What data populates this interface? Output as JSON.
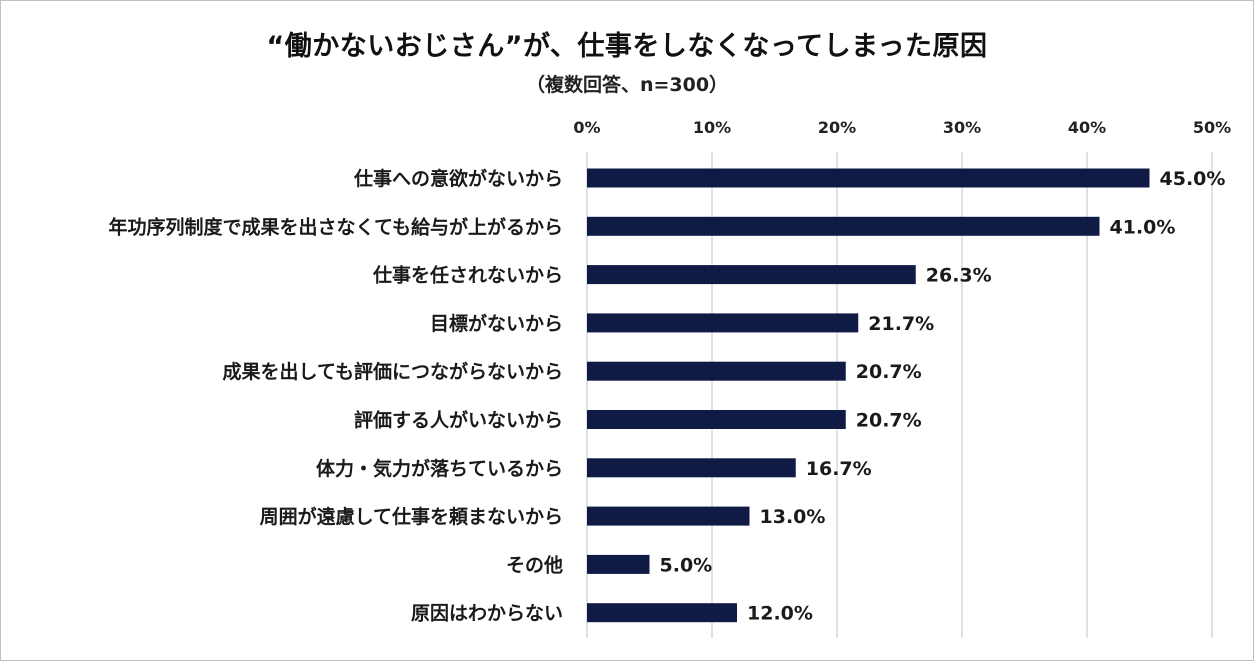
{
  "title": "“働かないおじさん”が、仕事をしなくなってしまった原因",
  "subtitle": "（複数回答、n=300）",
  "colors": {
    "bar": "#0f1a45",
    "grid": "#d9d9d9",
    "background": "#ffffff"
  },
  "chart_data": {
    "type": "bar",
    "orientation": "horizontal",
    "title": "“働かないおじさん”が、仕事をしなくなってしまった原因",
    "subtitle": "（複数回答、n=300）",
    "xlabel": "",
    "ylabel": "",
    "xlim": [
      0,
      50
    ],
    "x_ticks": [
      0,
      10,
      20,
      30,
      40,
      50
    ],
    "x_tick_labels": [
      "0%",
      "10%",
      "20%",
      "30%",
      "40%",
      "50%"
    ],
    "x_axis_position": "top",
    "grid": true,
    "legend": "none",
    "categories": [
      "仕事への意欲がないから",
      "年功序列制度で成果を出さなくても給与が上がるから",
      "仕事を任されないから",
      "目標がないから",
      "成果を出しても評価につながらないから",
      "評価する人がいないから",
      "体力・気力が落ちているから",
      "周囲が遠慮して仕事を頼まないから",
      "その他",
      "原因はわからない"
    ],
    "values": [
      45.0,
      41.0,
      26.3,
      21.7,
      20.7,
      20.7,
      16.7,
      13.0,
      5.0,
      12.0
    ],
    "value_labels": [
      "45.0%",
      "41.0%",
      "26.3%",
      "21.7%",
      "20.7%",
      "20.7%",
      "16.7%",
      "13.0%",
      "5.0%",
      "12.0%"
    ]
  }
}
